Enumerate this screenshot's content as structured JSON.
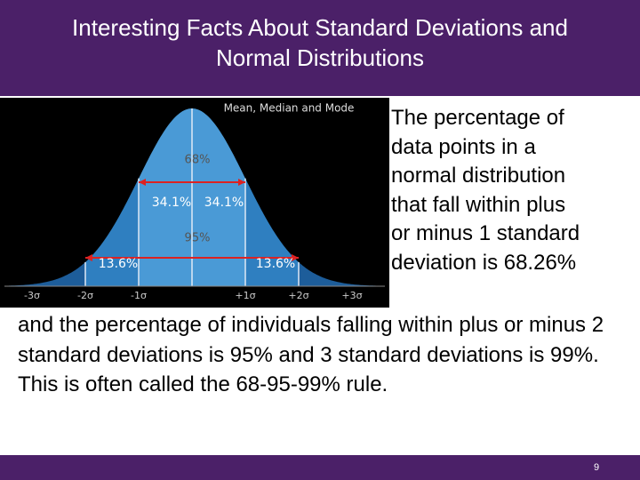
{
  "header": {
    "title": "Interesting Facts About Standard Deviations and Normal Distributions"
  },
  "figure": {
    "caption": "Mean, Median and Mode",
    "labels": [
      "68%",
      "34.1%",
      "34.1%",
      "95%",
      "13.6%",
      "13.6%"
    ],
    "axis": [
      "-3σ",
      "-2σ",
      "-1σ",
      "+1σ",
      "+2σ",
      "+3σ"
    ]
  },
  "body": {
    "side_lines": [
      "The percentage of",
      "data points in a",
      "normal distribution",
      "that fall within plus",
      "or minus 1 standard",
      "deviation  is 68.26%"
    ],
    "paragraph": "and the percentage of individuals falling within plus or minus 2 standard deviations is 95% and 3 standard deviations is 99%.  This is often called the 68-95-99% rule."
  },
  "footer": {
    "page": "9"
  }
}
